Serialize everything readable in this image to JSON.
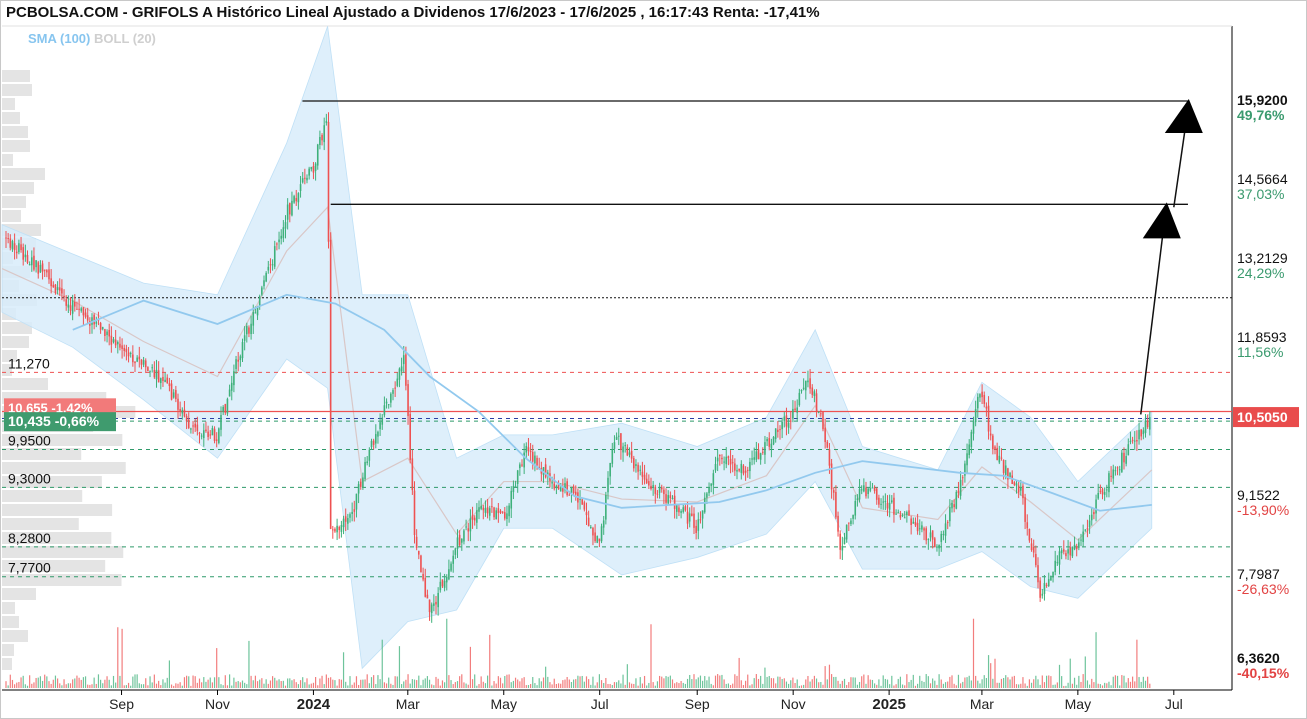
{
  "header": {
    "title": "PCBOLSA.COM - GRIFOLS A Histórico Lineal Ajustado a Dividenos 17/6/2023 - 17/6/2025 , 16:17:43 Renta: -17,41%"
  },
  "legend": {
    "sma": "SMA (100)",
    "boll": "BOLL (20)"
  },
  "colors": {
    "up": "#3db07a",
    "down": "#ee5151",
    "sma": "#92c9ee",
    "band": "#d8ecfa",
    "boll_mid": "#d9c7c7",
    "axis": "#000000",
    "green_text": "#3a9a6e",
    "red_text": "#e24343",
    "price_box": "#e94c4c",
    "current_box": "#3f9b6e",
    "prev_box": "#f27a7a"
  },
  "chart_data": {
    "type": "candlestick",
    "title": "PCBOLSA.COM - GRIFOLS A Histórico Lineal Ajustado a Dividenos 17/6/2023 - 17/6/2025 , 16:17:43 Renta: -17,41%",
    "x_range": [
      "2023-06-17",
      "2025-06-17"
    ],
    "x_ticks": [
      "Sep",
      "Nov",
      "2024",
      "Mar",
      "May",
      "Jul",
      "Sep",
      "Nov",
      "2025",
      "Mar",
      "May",
      "Jul"
    ],
    "right_axis_levels": [
      {
        "price": "15,9200",
        "pct": "49,76%"
      },
      {
        "price": "14,5664",
        "pct": "37,03%"
      },
      {
        "price": "13,2129",
        "pct": "24,29%"
      },
      {
        "price": "11,8593",
        "pct": "11,56%"
      },
      {
        "price": "10,5050",
        "pct": ""
      },
      {
        "price": "9,1522",
        "pct": "-13,90%"
      },
      {
        "price": "7,7987",
        "pct": "-26,63%"
      },
      {
        "price": "6,3620",
        "pct": "-40,15%"
      }
    ],
    "current_price_label": "10,5050",
    "left_level_labels": [
      "11,270",
      "9,9500",
      "9,3000",
      "8,2800",
      "7,7700"
    ],
    "left_price_boxes": [
      {
        "text": "10,655 -1,42%",
        "role": "previous"
      },
      {
        "text": "10,435 -0,66%",
        "role": "current"
      }
    ],
    "horizontal_levels": [
      {
        "price": 15.92,
        "style": "solid",
        "color": "black"
      },
      {
        "price": 14.15,
        "style": "solid",
        "color": "black"
      },
      {
        "price": 12.55,
        "style": "dotted",
        "color": "black"
      },
      {
        "price": 11.27,
        "style": "dashed",
        "color": "red"
      },
      {
        "price": 10.6,
        "style": "solid",
        "color": "red"
      },
      {
        "price": 10.48,
        "style": "dashed",
        "color": "blue"
      },
      {
        "price": 10.435,
        "style": "dashed",
        "color": "green"
      },
      {
        "price": 9.95,
        "style": "dashed",
        "color": "green"
      },
      {
        "price": 9.3,
        "style": "dashed",
        "color": "green"
      },
      {
        "price": 8.28,
        "style": "dashed",
        "color": "green"
      },
      {
        "price": 7.77,
        "style": "dashed",
        "color": "green"
      }
    ],
    "price_path": [
      [
        "2023-06-17",
        13.6
      ],
      [
        "2023-07-01",
        13.3
      ],
      [
        "2023-07-15",
        12.9
      ],
      [
        "2023-08-01",
        12.4
      ],
      [
        "2023-08-15",
        12.1
      ],
      [
        "2023-09-01",
        11.7
      ],
      [
        "2023-09-15",
        11.4
      ],
      [
        "2023-10-01",
        11.0
      ],
      [
        "2023-10-15",
        10.3
      ],
      [
        "2023-11-01",
        10.2
      ],
      [
        "2023-11-15",
        11.6
      ],
      [
        "2023-12-01",
        12.8
      ],
      [
        "2023-12-15",
        14.0
      ],
      [
        "2024-01-01",
        14.8
      ],
      [
        "2024-01-10",
        15.7
      ],
      [
        "2024-01-12",
        8.5
      ],
      [
        "2024-01-25",
        8.8
      ],
      [
        "2024-02-10",
        10.3
      ],
      [
        "2024-02-28",
        11.5
      ],
      [
        "2024-03-05",
        8.6
      ],
      [
        "2024-03-15",
        7.1
      ],
      [
        "2024-04-01",
        8.3
      ],
      [
        "2024-04-15",
        8.9
      ],
      [
        "2024-05-01",
        8.8
      ],
      [
        "2024-05-15",
        9.9
      ],
      [
        "2024-06-01",
        9.4
      ],
      [
        "2024-06-15",
        9.2
      ],
      [
        "2024-07-01",
        8.3
      ],
      [
        "2024-07-10",
        10.2
      ],
      [
        "2024-08-01",
        9.3
      ],
      [
        "2024-08-15",
        9.1
      ],
      [
        "2024-09-01",
        8.6
      ],
      [
        "2024-09-15",
        9.8
      ],
      [
        "2024-10-01",
        9.6
      ],
      [
        "2024-10-15",
        10.0
      ],
      [
        "2024-11-01",
        10.6
      ],
      [
        "2024-11-10",
        11.2
      ],
      [
        "2024-11-20",
        10.4
      ],
      [
        "2024-12-01",
        8.3
      ],
      [
        "2024-12-15",
        9.3
      ],
      [
        "2025-01-01",
        9.0
      ],
      [
        "2025-01-15",
        8.7
      ],
      [
        "2025-02-01",
        8.3
      ],
      [
        "2025-02-15",
        9.3
      ],
      [
        "2025-02-28",
        11.0
      ],
      [
        "2025-03-10",
        9.8
      ],
      [
        "2025-03-25",
        9.3
      ],
      [
        "2025-04-07",
        7.5
      ],
      [
        "2025-04-20",
        8.2
      ],
      [
        "2025-05-01",
        8.3
      ],
      [
        "2025-05-15",
        9.2
      ],
      [
        "2025-06-01",
        9.9
      ],
      [
        "2025-06-17",
        10.5
      ]
    ],
    "sma100": [
      [
        "2023-08-01",
        12.0
      ],
      [
        "2023-09-15",
        12.5
      ],
      [
        "2023-11-01",
        12.1
      ],
      [
        "2023-12-15",
        12.6
      ],
      [
        "2024-01-15",
        12.45
      ],
      [
        "2024-02-15",
        12.0
      ],
      [
        "2024-03-15",
        11.2
      ],
      [
        "2024-04-15",
        10.6
      ],
      [
        "2024-05-15",
        9.8
      ],
      [
        "2024-06-15",
        9.15
      ],
      [
        "2024-07-15",
        8.95
      ],
      [
        "2024-08-15",
        9.0
      ],
      [
        "2024-09-15",
        9.05
      ],
      [
        "2024-10-15",
        9.25
      ],
      [
        "2024-11-15",
        9.55
      ],
      [
        "2024-12-15",
        9.75
      ],
      [
        "2025-01-15",
        9.65
      ],
      [
        "2025-02-15",
        9.55
      ],
      [
        "2025-03-15",
        9.5
      ],
      [
        "2025-04-15",
        9.2
      ],
      [
        "2025-05-15",
        8.9
      ],
      [
        "2025-06-17",
        9.0
      ]
    ],
    "bollinger_upper": [
      [
        "2023-06-17",
        13.8
      ],
      [
        "2023-08-01",
        13.3
      ],
      [
        "2023-09-15",
        12.8
      ],
      [
        "2023-11-01",
        12.6
      ],
      [
        "2023-12-15",
        15.2
      ],
      [
        "2024-01-10",
        17.2
      ],
      [
        "2024-02-01",
        12.6
      ],
      [
        "2024-03-01",
        12.6
      ],
      [
        "2024-04-01",
        9.8
      ],
      [
        "2024-05-01",
        10.2
      ],
      [
        "2024-06-01",
        10.2
      ],
      [
        "2024-07-15",
        10.4
      ],
      [
        "2024-09-01",
        10.0
      ],
      [
        "2024-10-15",
        10.5
      ],
      [
        "2024-11-15",
        12.0
      ],
      [
        "2024-12-15",
        10.0
      ],
      [
        "2025-02-01",
        9.6
      ],
      [
        "2025-03-01",
        11.1
      ],
      [
        "2025-04-01",
        10.5
      ],
      [
        "2025-05-01",
        9.4
      ],
      [
        "2025-06-17",
        10.6
      ]
    ],
    "bollinger_lower": [
      [
        "2023-06-17",
        12.3
      ],
      [
        "2023-08-01",
        11.7
      ],
      [
        "2023-09-15",
        10.8
      ],
      [
        "2023-11-01",
        9.8
      ],
      [
        "2023-12-15",
        11.5
      ],
      [
        "2024-01-10",
        11.0
      ],
      [
        "2024-02-01",
        6.2
      ],
      [
        "2024-03-01",
        7.0
      ],
      [
        "2024-04-01",
        7.2
      ],
      [
        "2024-05-01",
        8.6
      ],
      [
        "2024-06-01",
        8.6
      ],
      [
        "2024-07-15",
        7.8
      ],
      [
        "2024-09-01",
        8.1
      ],
      [
        "2024-10-15",
        8.5
      ],
      [
        "2024-11-15",
        9.4
      ],
      [
        "2024-12-15",
        7.9
      ],
      [
        "2025-02-01",
        7.9
      ],
      [
        "2025-03-01",
        8.2
      ],
      [
        "2025-04-01",
        7.6
      ],
      [
        "2025-05-01",
        7.4
      ],
      [
        "2025-06-17",
        8.6
      ]
    ],
    "arrow_targets": [
      14.15,
      15.92
    ],
    "grid": false,
    "legend": "top-left"
  }
}
